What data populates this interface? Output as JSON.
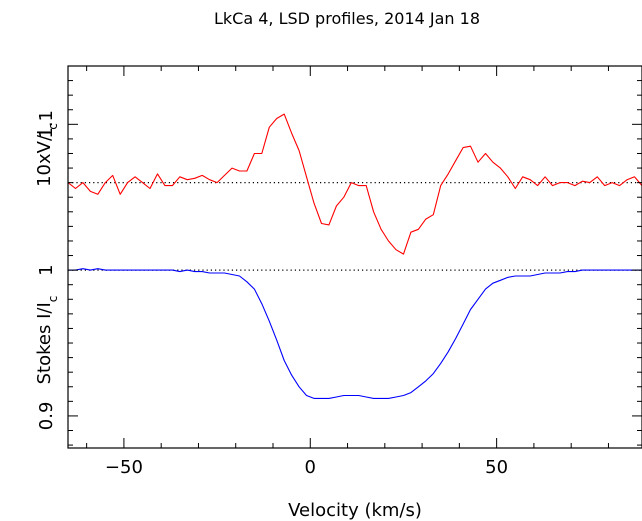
{
  "chart_data": {
    "type": "line",
    "title": "LkCa 4, LSD profiles, 2014 Jan 18",
    "xlabel": "Velocity (km/s)",
    "ylabel_main": "Stokes I/I",
    "ylabel_main_sub": "c",
    "ylabel_upper": "10xV/I",
    "ylabel_upper_sub": "c",
    "xlim": [
      -65,
      89
    ],
    "ylim": [
      0.878,
      1.14
    ],
    "x_ticks": [
      -50,
      0,
      50
    ],
    "x_tick_labels": [
      "−50",
      "0",
      "50"
    ],
    "y_ticks": [
      0.9,
      1,
      1.1
    ],
    "y_tick_labels": [
      "0.9",
      "1",
      "1.1"
    ],
    "grid": false,
    "reference_lines": [
      {
        "y": 1.0,
        "style": "dotted"
      },
      {
        "y": 1.06,
        "style": "dotted"
      }
    ],
    "series": [
      {
        "color": "#ff0000",
        "x": [
          -65,
          -63,
          -61,
          -59,
          -57,
          -55,
          -53,
          -51,
          -49,
          -47,
          -45,
          -43,
          -41,
          -39,
          -37,
          -35,
          -33,
          -31,
          -29,
          -27,
          -25,
          -23,
          -21,
          -19,
          -17,
          -15,
          -13,
          -11,
          -9,
          -7,
          -5,
          -3,
          -1,
          1,
          3,
          5,
          7,
          9,
          11,
          13,
          15,
          17,
          19,
          21,
          23,
          25,
          27,
          29,
          31,
          33,
          35,
          37,
          39,
          41,
          43,
          45,
          47,
          49,
          51,
          53,
          55,
          57,
          59,
          61,
          63,
          65,
          67,
          69,
          71,
          73,
          75,
          77,
          79,
          81,
          83,
          85,
          87,
          89
        ],
        "y": [
          1.06,
          1.056,
          1.06,
          1.054,
          1.052,
          1.06,
          1.065,
          1.052,
          1.06,
          1.064,
          1.06,
          1.056,
          1.066,
          1.058,
          1.058,
          1.064,
          1.062,
          1.063,
          1.065,
          1.062,
          1.06,
          1.065,
          1.07,
          1.068,
          1.068,
          1.08,
          1.08,
          1.098,
          1.104,
          1.107,
          1.094,
          1.082,
          1.064,
          1.046,
          1.032,
          1.031,
          1.044,
          1.05,
          1.06,
          1.058,
          1.058,
          1.04,
          1.028,
          1.02,
          1.014,
          1.011,
          1.026,
          1.028,
          1.035,
          1.038,
          1.058,
          1.066,
          1.075,
          1.084,
          1.085,
          1.074,
          1.08,
          1.074,
          1.07,
          1.064,
          1.056,
          1.064,
          1.062,
          1.058,
          1.064,
          1.058,
          1.06,
          1.06,
          1.058,
          1.061,
          1.06,
          1.064,
          1.058,
          1.06,
          1.058,
          1.062,
          1.064,
          1.058
        ]
      },
      {
        "color": "#0000ff",
        "x": [
          -65,
          -63,
          -61,
          -59,
          -57,
          -55,
          -53,
          -51,
          -49,
          -47,
          -45,
          -43,
          -41,
          -39,
          -37,
          -35,
          -33,
          -31,
          -29,
          -27,
          -25,
          -23,
          -21,
          -19,
          -17,
          -15,
          -13,
          -11,
          -9,
          -7,
          -5,
          -3,
          -1,
          1,
          3,
          5,
          7,
          9,
          11,
          13,
          15,
          17,
          19,
          21,
          23,
          25,
          27,
          29,
          31,
          33,
          35,
          37,
          39,
          41,
          43,
          45,
          47,
          49,
          51,
          53,
          55,
          57,
          59,
          61,
          63,
          65,
          67,
          69,
          71,
          73,
          75,
          77,
          79,
          81,
          83,
          85,
          87,
          89
        ],
        "y": [
          1.0,
          1.0,
          1.001,
          1.0,
          1.001,
          1.0,
          1.0,
          1.0,
          1.0,
          1.0,
          1.0,
          1.0,
          1.0,
          1.0,
          1.0,
          0.999,
          1.0,
          0.999,
          0.999,
          0.998,
          0.998,
          0.998,
          0.997,
          0.996,
          0.992,
          0.987,
          0.977,
          0.965,
          0.952,
          0.938,
          0.928,
          0.92,
          0.914,
          0.912,
          0.912,
          0.912,
          0.913,
          0.914,
          0.914,
          0.914,
          0.913,
          0.912,
          0.912,
          0.912,
          0.913,
          0.914,
          0.916,
          0.92,
          0.924,
          0.929,
          0.936,
          0.944,
          0.953,
          0.963,
          0.973,
          0.98,
          0.987,
          0.991,
          0.993,
          0.995,
          0.996,
          0.996,
          0.996,
          0.997,
          0.998,
          0.998,
          0.998,
          0.999,
          0.999,
          1.0,
          1.0,
          1.0,
          1.0,
          1.0,
          1.0,
          1.0,
          1.0,
          1.0
        ]
      }
    ]
  }
}
